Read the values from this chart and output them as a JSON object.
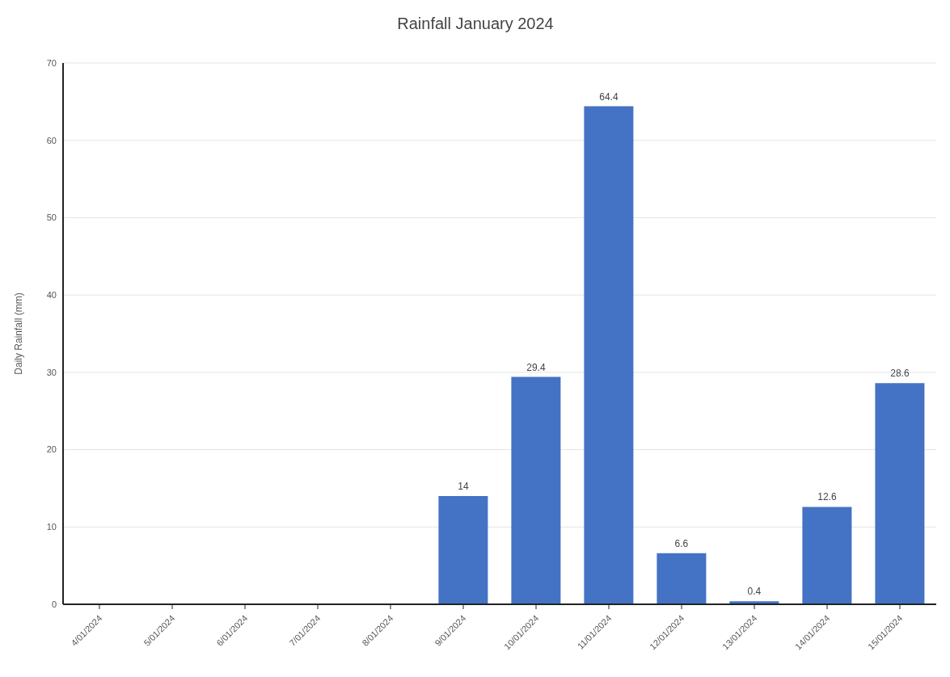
{
  "chart_data": {
    "type": "bar",
    "title": "Rainfall January 2024",
    "ylabel": "Daily Rainfall (mm)",
    "categories": [
      "4/01/2024",
      "5/01/2024",
      "6/01/2024",
      "7/01/2024",
      "8/01/2024",
      "9/01/2024",
      "10/01/2024",
      "11/01/2024",
      "12/01/2024",
      "13/01/2024",
      "14/01/2024",
      "15/01/2024"
    ],
    "values": [
      0,
      0,
      0,
      0,
      0,
      14,
      29.4,
      64.4,
      6.6,
      0.4,
      12.6,
      28.6
    ],
    "value_labels": [
      null,
      null,
      null,
      null,
      null,
      "14",
      "29.4",
      "64.4",
      "6.6",
      "0.4",
      "12.6",
      "28.6"
    ],
    "color": "#4472c4",
    "ylim": [
      0,
      70
    ],
    "yticks": [
      0,
      10,
      20,
      30,
      40,
      50,
      60,
      70
    ],
    "grid": "y"
  }
}
